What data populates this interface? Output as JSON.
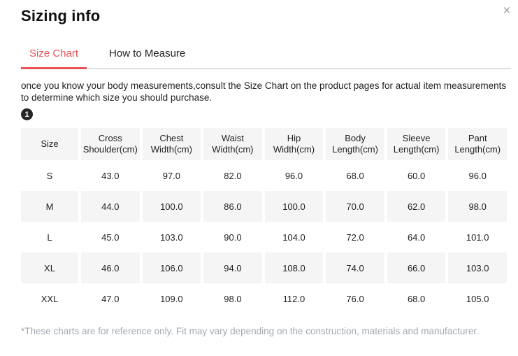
{
  "modal": {
    "title": "Sizing info",
    "close_icon": "×"
  },
  "tabs": {
    "0": {
      "label": "Size Chart",
      "active": true
    },
    "1": {
      "label": "How to Measure",
      "active": false
    }
  },
  "description": "once you know your body measurements,consult the Size Chart on the product pages for actual item measurements to determine which size you should purchase.",
  "step_badge": "1",
  "size_chart": {
    "columns": [
      "Size",
      "Cross Shoulder(cm)",
      "Chest Width(cm)",
      "Waist Width(cm)",
      "Hip Width(cm)",
      "Body Length(cm)",
      "Sleeve Length(cm)",
      "Pant Length(cm)"
    ],
    "rows": [
      [
        "S",
        "43.0",
        "97.0",
        "82.0",
        "96.0",
        "68.0",
        "60.0",
        "96.0"
      ],
      [
        "M",
        "44.0",
        "100.0",
        "86.0",
        "100.0",
        "70.0",
        "62.0",
        "98.0"
      ],
      [
        "L",
        "45.0",
        "103.0",
        "90.0",
        "104.0",
        "72.0",
        "64.0",
        "101.0"
      ],
      [
        "XL",
        "46.0",
        "106.0",
        "94.0",
        "108.0",
        "74.0",
        "66.0",
        "103.0"
      ],
      [
        "XXL",
        "47.0",
        "109.0",
        "98.0",
        "112.0",
        "76.0",
        "68.0",
        "105.0"
      ]
    ]
  },
  "footnote": "*These charts are for reference only. Fit may vary depending on the construction, materials and manufacturer.",
  "colors": {
    "accent_red": "#e9545b",
    "header_bg": "#f5f5f6",
    "stripe_bg": "#f5f5f6",
    "muted_text": "#a3aab1",
    "divider": "#e0e0e0"
  }
}
